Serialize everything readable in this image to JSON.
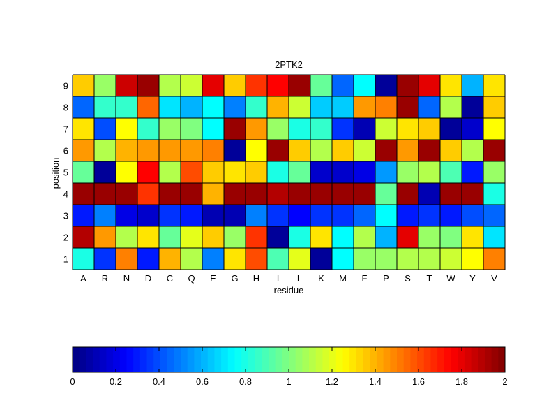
{
  "chart_data": {
    "type": "heatmap",
    "title": "2PTK2",
    "xlabel": "residue",
    "ylabel": "position",
    "x_categories": [
      "A",
      "R",
      "N",
      "D",
      "C",
      "Q",
      "E",
      "G",
      "H",
      "I",
      "L",
      "K",
      "M",
      "F",
      "P",
      "S",
      "T",
      "W",
      "Y",
      "V"
    ],
    "y_categories": [
      "1",
      "2",
      "3",
      "4",
      "5",
      "6",
      "7",
      "8",
      "9"
    ],
    "colormap": "jet",
    "clim": [
      0,
      2
    ],
    "colorbar_ticks": [
      "0",
      "0.2",
      "0.4",
      "0.6",
      "0.8",
      "1",
      "1.2",
      "1.4",
      "1.6",
      "1.8",
      "2"
    ],
    "grid": true,
    "values": [
      [
        0.8,
        0.35,
        1.5,
        0.3,
        1.4,
        1.1,
        0.5,
        1.3,
        1.6,
        0.9,
        1.2,
        0.05,
        0.75,
        1.05,
        1.05,
        1.1,
        1.1,
        1.15,
        1.25,
        1.5
      ],
      [
        1.9,
        1.45,
        1.1,
        1.3,
        0.95,
        1.2,
        1.35,
        1.05,
        1.65,
        0.05,
        0.8,
        1.3,
        0.75,
        1.1,
        0.6,
        1.8,
        1.05,
        1.0,
        1.3,
        0.7
      ],
      [
        0.3,
        0.5,
        0.2,
        0.15,
        0.35,
        0.3,
        0.1,
        0.1,
        0.5,
        0.35,
        0.25,
        0.35,
        0.35,
        0.45,
        0.75,
        0.3,
        0.35,
        0.3,
        0.4,
        0.45
      ],
      [
        1.95,
        1.95,
        1.95,
        1.65,
        1.95,
        1.95,
        1.4,
        1.95,
        1.95,
        1.9,
        1.95,
        1.95,
        1.95,
        1.95,
        0.95,
        1.95,
        0.1,
        1.95,
        1.95,
        0.8
      ],
      [
        0.95,
        0.05,
        1.25,
        1.75,
        1.1,
        1.6,
        1.35,
        1.3,
        1.35,
        0.8,
        0.95,
        0.15,
        0.15,
        0.2,
        0.55,
        1.05,
        1.1,
        0.9,
        0.3,
        1.05
      ],
      [
        1.45,
        1.1,
        1.4,
        1.45,
        1.45,
        1.45,
        1.5,
        0.05,
        1.25,
        1.95,
        1.35,
        1.1,
        1.35,
        1.15,
        1.95,
        1.45,
        1.95,
        1.35,
        1.1,
        1.95
      ],
      [
        1.3,
        0.4,
        1.25,
        0.85,
        1.05,
        1.0,
        0.75,
        1.95,
        1.45,
        1.05,
        0.8,
        0.85,
        0.35,
        0.1,
        1.15,
        1.3,
        1.35,
        0.05,
        0.15,
        1.25
      ],
      [
        0.45,
        0.85,
        0.85,
        1.55,
        0.7,
        0.6,
        0.75,
        0.5,
        0.85,
        1.4,
        1.15,
        0.65,
        0.65,
        1.45,
        1.5,
        1.95,
        0.45,
        1.1,
        0.05,
        1.35
      ],
      [
        1.35,
        1.05,
        1.85,
        1.95,
        1.1,
        1.15,
        1.8,
        1.35,
        1.65,
        1.75,
        1.95,
        0.95,
        0.45,
        0.75,
        0.05,
        1.95,
        1.8,
        1.3,
        0.6,
        1.3
      ]
    ]
  }
}
